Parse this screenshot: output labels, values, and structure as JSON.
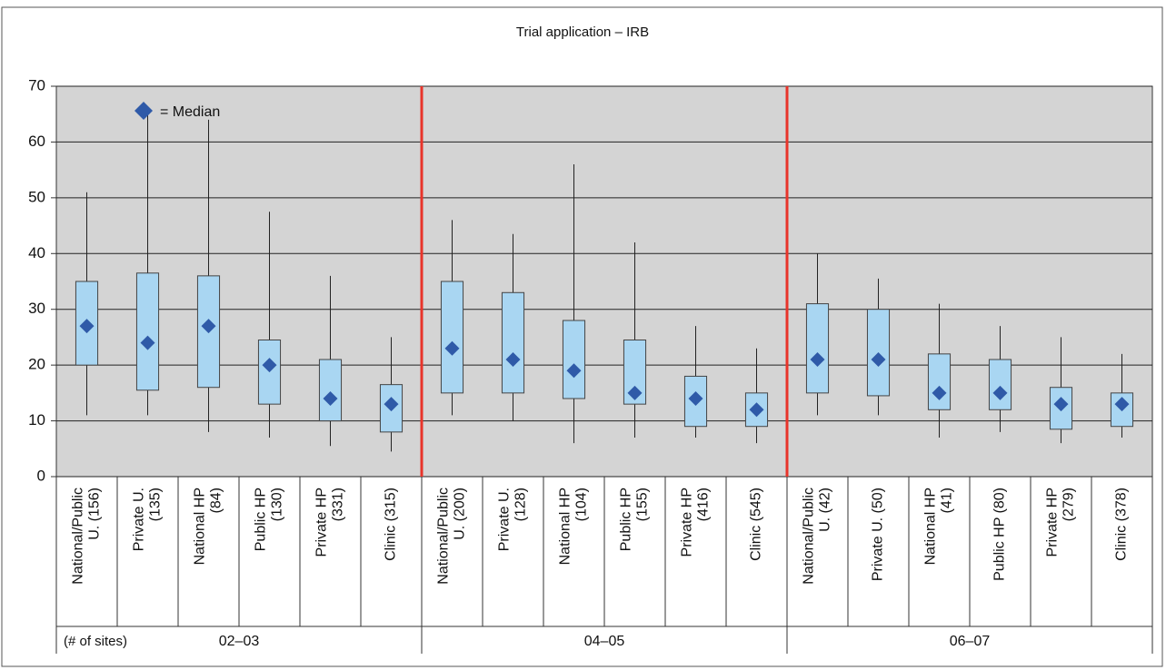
{
  "chart_data": {
    "type": "box",
    "title": "Trial application – IRB",
    "legend_label": "= Median",
    "group_note": "(# of sites)",
    "categories": [
      "National/Public\nU. (156)",
      "Private U.\n(135)",
      "National HP\n(84)",
      "Public HP\n(130)",
      "Private HP\n(331)",
      "Clinic (315)",
      "National/Public\nU. (200)",
      "Private U.\n(128)",
      "National HP\n(104)",
      "Public HP\n(155)",
      "Private HP\n(416)",
      "Clinic (545)",
      "National/Public\nU. (42)",
      "Private U. (50)",
      "National HP\n(41)",
      "Public HP (80)",
      "Private HP\n(279)",
      "Clinic (378)"
    ],
    "groups": [
      "02–03",
      "04–05",
      "06–07"
    ],
    "group_size": 6,
    "whisker_low": [
      11,
      11,
      8,
      7,
      5.5,
      4.5,
      11,
      10,
      6,
      7,
      7,
      6,
      11,
      11,
      7,
      8,
      6,
      7
    ],
    "q1": [
      20,
      15.5,
      16,
      13,
      10,
      8,
      15,
      15,
      14,
      13,
      9,
      9,
      15,
      14.5,
      12,
      12,
      8.5,
      9
    ],
    "median": [
      27,
      24,
      27,
      20,
      14,
      13,
      23,
      21,
      19,
      15,
      14,
      12,
      21,
      21,
      15,
      15,
      13,
      13
    ],
    "q3": [
      35,
      36.5,
      36,
      24.5,
      21,
      16.5,
      35,
      33,
      28,
      24.5,
      18,
      15,
      31,
      30,
      22,
      21,
      16,
      15
    ],
    "whisker_high": [
      51,
      65,
      64,
      47.5,
      36,
      25,
      46,
      43.5,
      56,
      42,
      27,
      23,
      40,
      35.5,
      31,
      27,
      25,
      22
    ],
    "box_color": "#a9d6f2",
    "median_color": "#2f5aa8",
    "separator_color": "#e8342a",
    "ylim": [
      0,
      70
    ],
    "yticks": [
      0,
      10,
      20,
      30,
      40,
      50,
      60,
      70
    ],
    "grid": true
  }
}
